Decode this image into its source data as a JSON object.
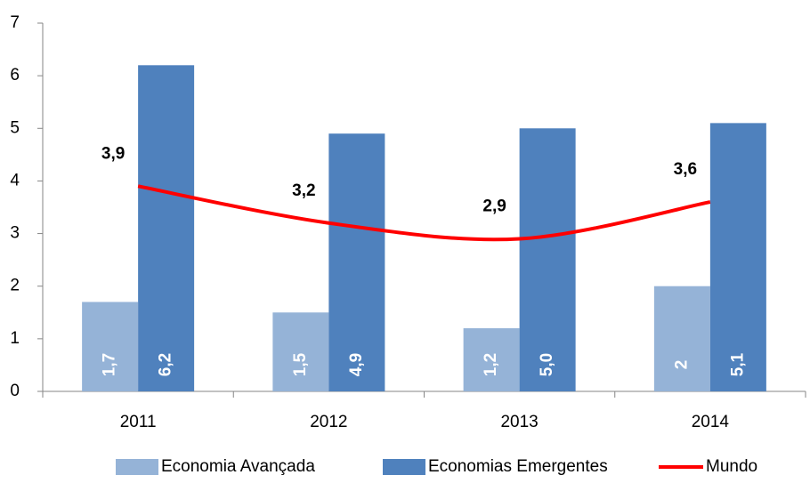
{
  "chart_data": {
    "type": "bar",
    "categories": [
      "2011",
      "2012",
      "2013",
      "2014"
    ],
    "series": [
      {
        "name": "Economia Avançada",
        "color": "#95b3d7",
        "values": [
          1.7,
          1.5,
          1.2,
          2
        ],
        "value_labels": [
          "1,7",
          "1,5",
          "1,2",
          "2"
        ]
      },
      {
        "name": "Economias Emergentes",
        "color": "#4f81bd",
        "values": [
          6.2,
          4.9,
          5.0,
          5.1
        ],
        "value_labels": [
          "6,2",
          "4,9",
          "5,0",
          "5,1"
        ]
      },
      {
        "name": "Mundo",
        "type": "line",
        "color": "#ff0000",
        "values": [
          3.9,
          3.2,
          2.9,
          3.6
        ],
        "value_labels": [
          "3,9",
          "3,2",
          "2,9",
          "3,6"
        ]
      }
    ],
    "ylim": [
      0,
      7
    ],
    "yticks": [
      0,
      1,
      2,
      3,
      4,
      5,
      6,
      7
    ],
    "grid": false,
    "legend": "bottom"
  }
}
